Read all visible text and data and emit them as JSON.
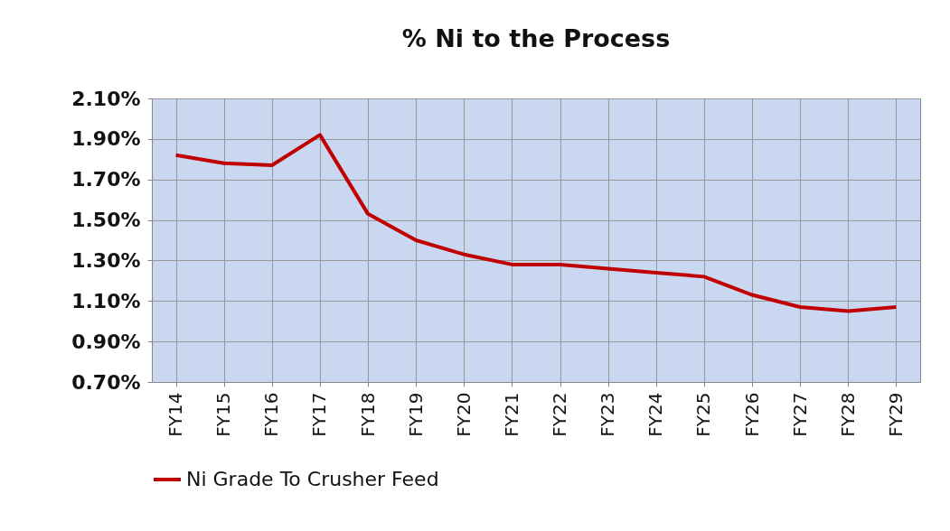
{
  "chart_data": {
    "type": "line",
    "title": "% Ni to the Process",
    "categories": [
      "FY14",
      "FY15",
      "FY16",
      "FY17",
      "FY18",
      "FY19",
      "FY20",
      "FY21",
      "FY22",
      "FY23",
      "FY24",
      "FY25",
      "FY26",
      "FY27",
      "FY28",
      "FY29"
    ],
    "series": [
      {
        "name": "Ni Grade To Crusher Feed",
        "color": "#c00000",
        "values": [
          1.82,
          1.78,
          1.77,
          1.92,
          1.53,
          1.4,
          1.33,
          1.28,
          1.28,
          1.26,
          1.24,
          1.22,
          1.13,
          1.07,
          1.05,
          1.07
        ]
      }
    ],
    "ylim": [
      0.7,
      2.1
    ],
    "yticks": [
      {
        "value": 0.7,
        "label": "0.70%"
      },
      {
        "value": 0.9,
        "label": "0.90%"
      },
      {
        "value": 1.1,
        "label": "1.10%"
      },
      {
        "value": 1.3,
        "label": "1.30%"
      },
      {
        "value": 1.5,
        "label": "1.50%"
      },
      {
        "value": 1.7,
        "label": "1.70%"
      },
      {
        "value": 1.9,
        "label": "1.90%"
      },
      {
        "value": 2.1,
        "label": "2.10%"
      }
    ],
    "grid": true,
    "legend": "bottom",
    "marker": "none",
    "line_style": "solid"
  }
}
